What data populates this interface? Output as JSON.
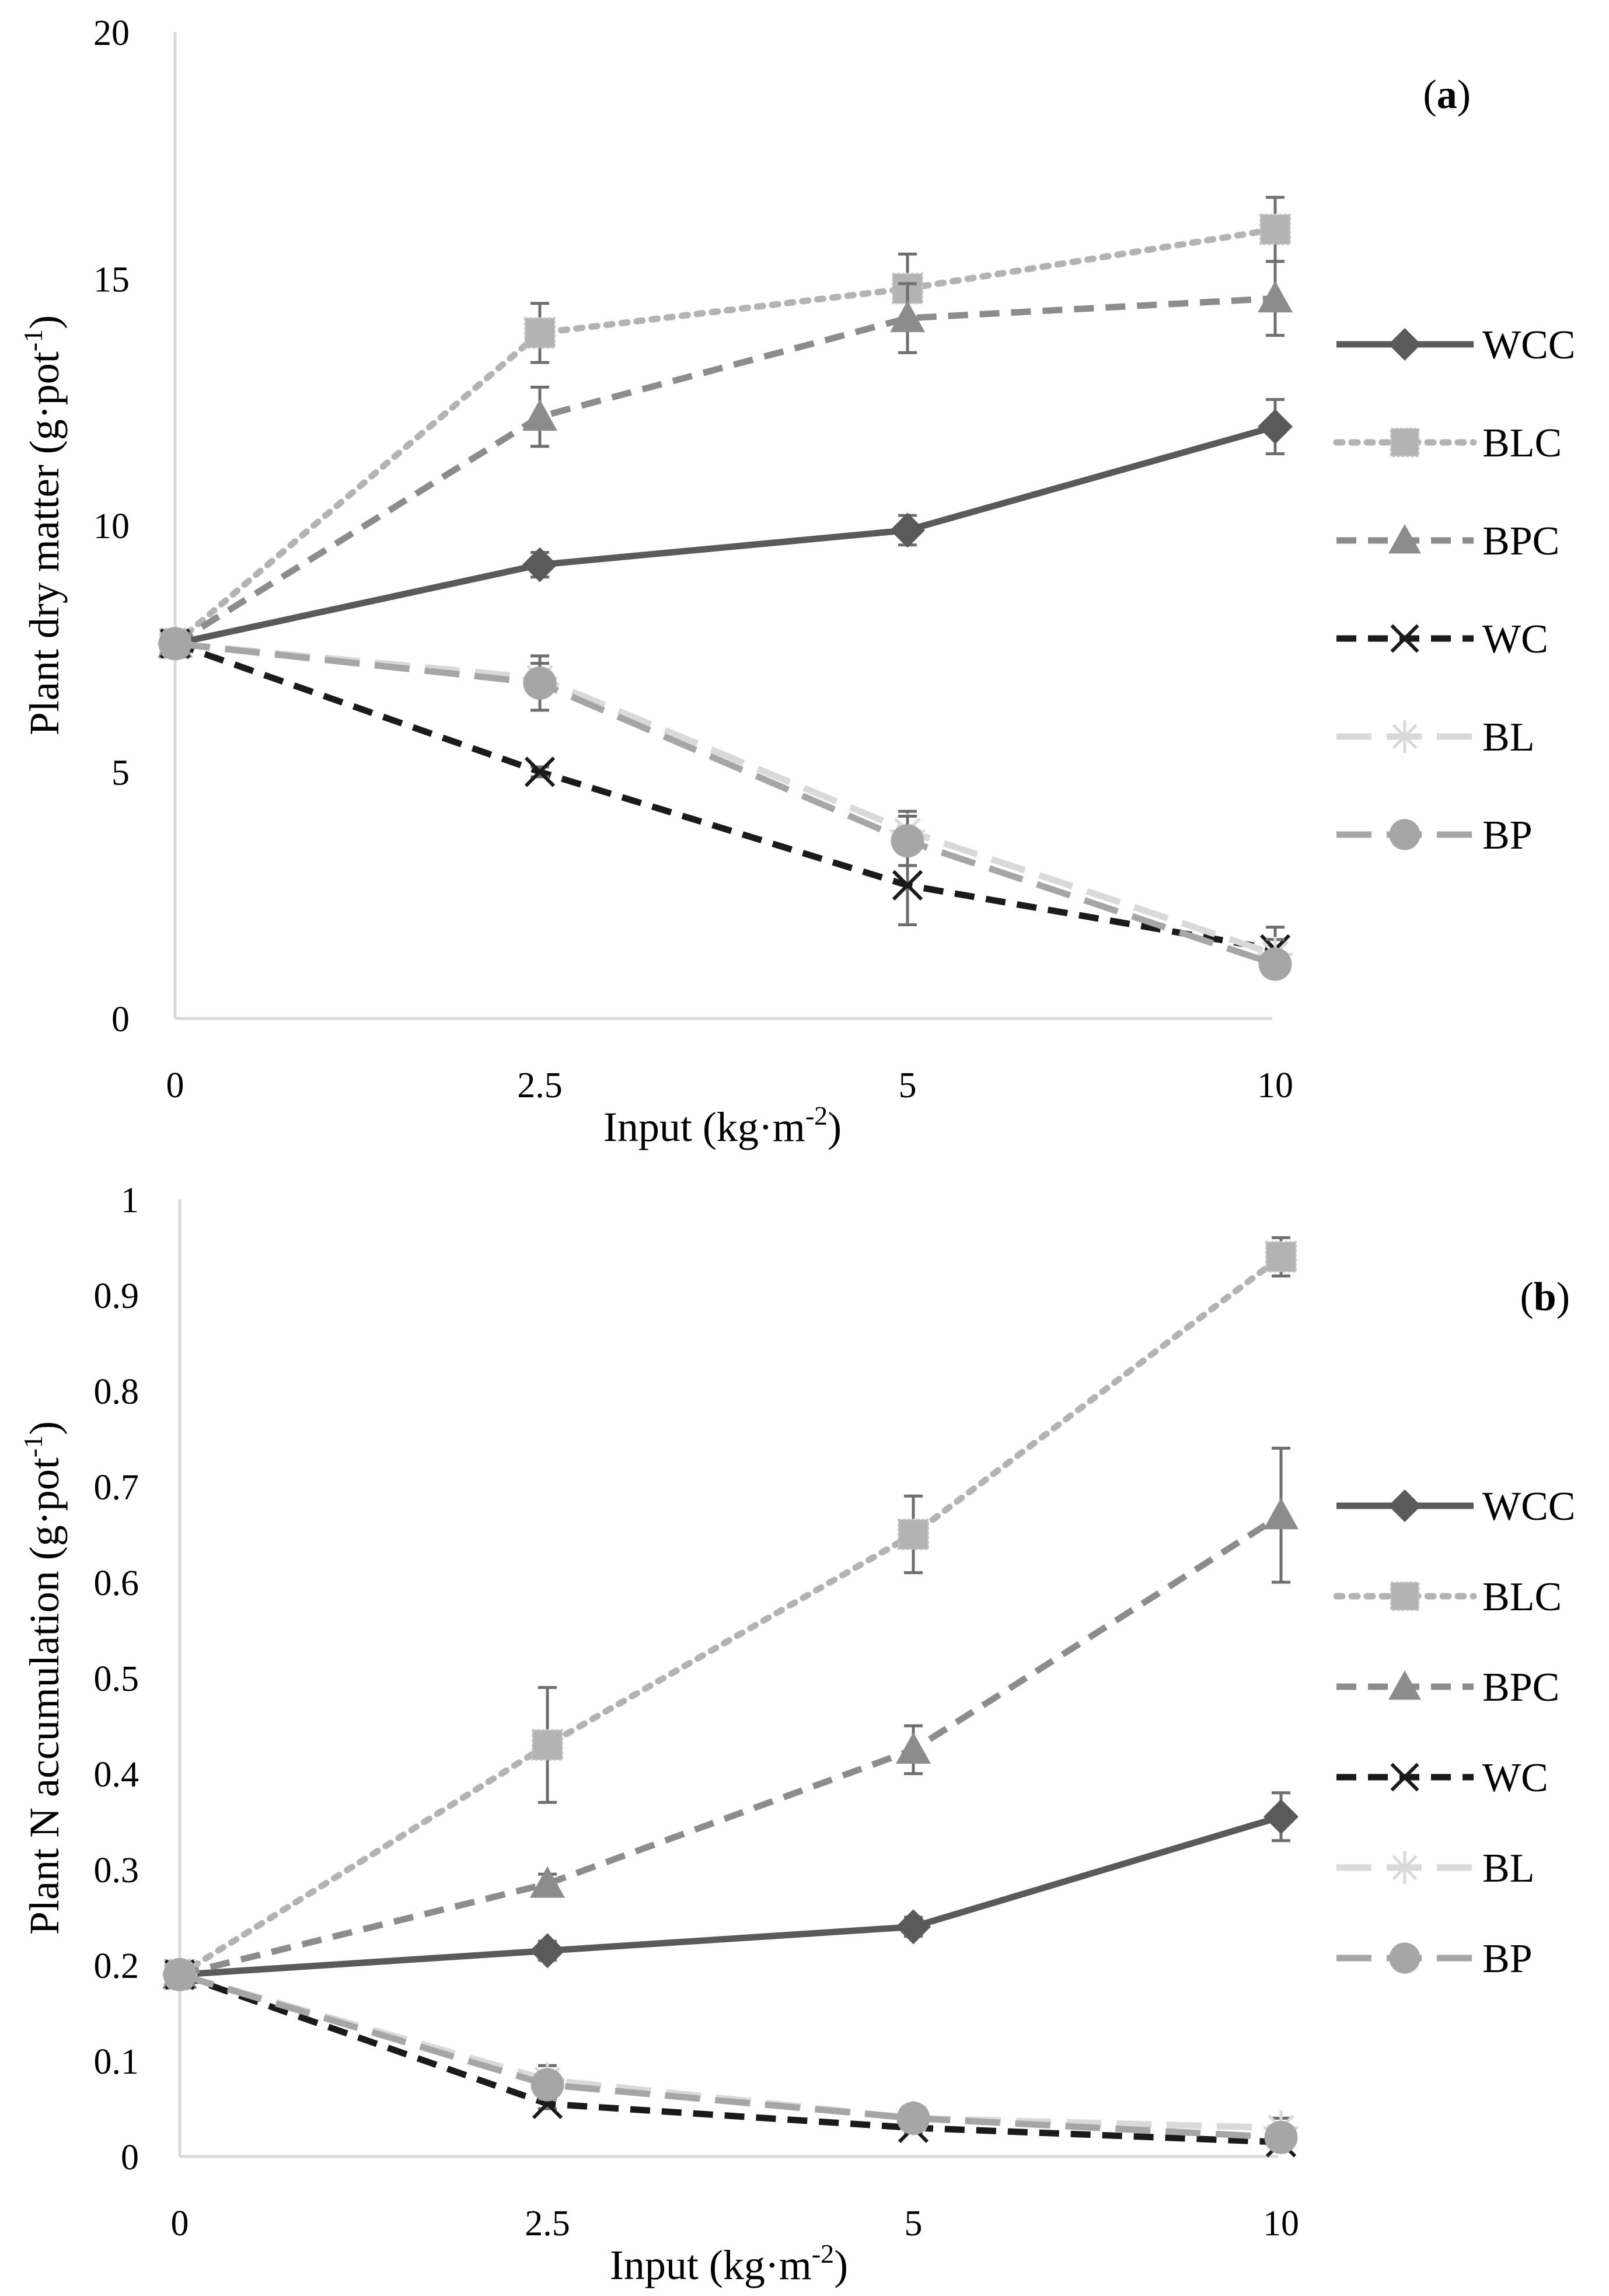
{
  "styles": {
    "WCC": {
      "color": "#5a5a5a",
      "dash": "",
      "marker": "diamond"
    },
    "BLC": {
      "color": "#b3b3b3",
      "dash": "dot",
      "marker": "square"
    },
    "BPC": {
      "color": "#8c8c8c",
      "dash": "dash",
      "marker": "triangle"
    },
    "WC": {
      "color": "#1a1a1a",
      "dash": "dash",
      "marker": "x"
    },
    "BL": {
      "color": "#d9d9d9",
      "dash": "longdash",
      "marker": "star"
    },
    "BP": {
      "color": "#a6a6a6",
      "dash": "longdash",
      "marker": "circle"
    }
  },
  "chart_data": [
    {
      "type": "line",
      "panel_prefix": "(",
      "panel_letter": "a",
      "panel_suffix": ")",
      "xlabel": "Input (kg·m",
      "xlabel_sup": "-2",
      "xlabel_end": ")",
      "ylabel": "Plant dry matter (g·pot",
      "ylabel_sup": "-1",
      "ylabel_end": ")",
      "categories": [
        "0",
        "2.5",
        "5",
        "10"
      ],
      "ylim": [
        0,
        20
      ],
      "yticks": [
        "0",
        "5",
        "10",
        "15",
        "20"
      ],
      "ytick_values": [
        0,
        5,
        10,
        15,
        20
      ],
      "legend_position": "right",
      "series": [
        {
          "name": "WCC",
          "values": [
            7.6,
            9.2,
            9.9,
            12.0
          ],
          "errors": [
            0.25,
            0.25,
            0.3,
            0.55
          ]
        },
        {
          "name": "BLC",
          "values": [
            7.6,
            13.9,
            14.8,
            16.0
          ],
          "errors": [
            0.25,
            0.6,
            0.7,
            0.65
          ]
        },
        {
          "name": "BPC",
          "values": [
            7.6,
            12.2,
            14.2,
            14.6
          ],
          "errors": [
            0.25,
            0.6,
            0.7,
            0.75
          ]
        },
        {
          "name": "WC",
          "values": [
            7.6,
            5.0,
            2.7,
            1.4
          ],
          "errors": [
            0.25,
            0.1,
            0.8,
            0.45
          ]
        },
        {
          "name": "BL",
          "values": [
            7.6,
            6.9,
            3.8,
            1.3
          ],
          "errors": [
            0.25,
            0.3,
            0.4,
            0.3
          ]
        },
        {
          "name": "BP",
          "values": [
            7.6,
            6.8,
            3.6,
            1.1
          ],
          "errors": [
            0.25,
            0.55,
            0.5,
            0.1
          ]
        }
      ]
    },
    {
      "type": "line",
      "panel_prefix": "(",
      "panel_letter": "b",
      "panel_suffix": ")",
      "xlabel": "Input (kg·m",
      "xlabel_sup": "-2",
      "xlabel_end": ")",
      "ylabel": "Plant N accumulation (g·pot",
      "ylabel_sup": "-1",
      "ylabel_end": ")",
      "categories": [
        "0",
        "2.5",
        "5",
        "10"
      ],
      "ylim": [
        0,
        1
      ],
      "yticks": [
        "0",
        "0.1",
        "0.2",
        "0.3",
        "0.4",
        "0.5",
        "0.6",
        "0.7",
        "0.8",
        "0.9",
        "1"
      ],
      "ytick_values": [
        0,
        0.1,
        0.2,
        0.3,
        0.4,
        0.5,
        0.6,
        0.7,
        0.8,
        0.9,
        1.0
      ],
      "legend_position": "right",
      "series": [
        {
          "name": "WCC",
          "values": [
            0.19,
            0.215,
            0.24,
            0.355
          ],
          "errors": [
            0.01,
            0.01,
            0.01,
            0.025
          ]
        },
        {
          "name": "BLC",
          "values": [
            0.19,
            0.43,
            0.65,
            0.94
          ],
          "errors": [
            0.01,
            0.06,
            0.04,
            0.02
          ]
        },
        {
          "name": "BPC",
          "values": [
            0.19,
            0.285,
            0.425,
            0.67
          ],
          "errors": [
            0.01,
            0.01,
            0.025,
            0.07
          ]
        },
        {
          "name": "WC",
          "values": [
            0.19,
            0.055,
            0.03,
            0.015
          ],
          "errors": [
            0.01,
            0.005,
            0.005,
            0.005
          ]
        },
        {
          "name": "BL",
          "values": [
            0.19,
            0.08,
            0.04,
            0.03
          ],
          "errors": [
            0.01,
            0.015,
            0.005,
            0.01
          ]
        },
        {
          "name": "BP",
          "values": [
            0.19,
            0.075,
            0.04,
            0.02
          ],
          "errors": [
            0.01,
            0.01,
            0.005,
            0.005
          ]
        }
      ]
    }
  ]
}
